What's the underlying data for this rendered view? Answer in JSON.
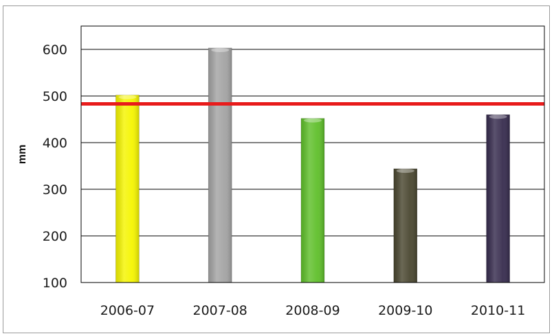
{
  "chart_data": {
    "type": "bar",
    "title": "",
    "xlabel": "",
    "ylabel": "mm",
    "ylim": [
      100,
      650
    ],
    "yticks": [
      100,
      200,
      300,
      400,
      500,
      600
    ],
    "categories": [
      "2006-07",
      "2007-08",
      "2008-09",
      "2009-10",
      "2010-11"
    ],
    "series": [
      {
        "values": [
          502,
          603,
          452,
          344,
          460
        ]
      }
    ],
    "bar_colors": [
      "#f5f500",
      "#a3a3a3",
      "#5fbf2a",
      "#4a4730",
      "#372c4e"
    ],
    "reference_line": {
      "value": 483,
      "color": "#e81b1b"
    },
    "grid": true,
    "legend": "none"
  }
}
